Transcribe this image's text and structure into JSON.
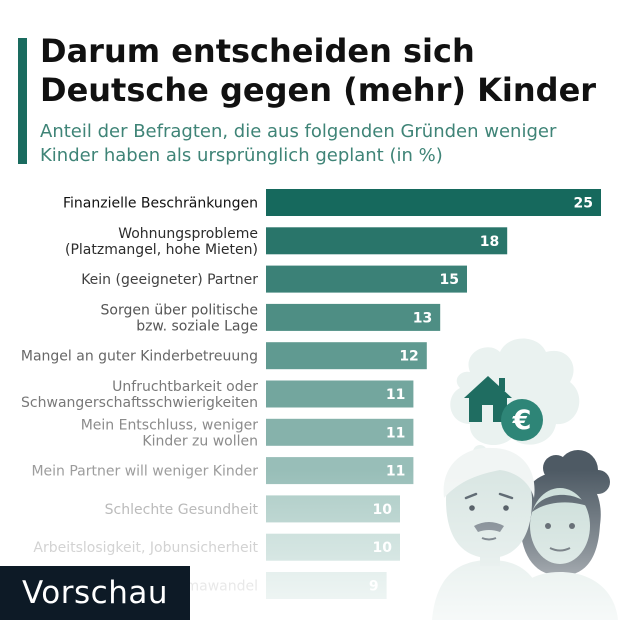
{
  "header": {
    "title_line1": "Darum entscheiden sich",
    "title_line2": "Deutsche gegen (mehr) Kinder",
    "subtitle_line1": "Anteil der Befragten, die aus folgenden Gründen weniger",
    "subtitle_line2": "Kinder haben als ursprünglich geplant (in %)"
  },
  "colors": {
    "accent": "#1a6b5f",
    "bar_start": "#16695d",
    "bar_end": "#d0e3df",
    "preview_bg": "#0d1a26"
  },
  "chart_data": {
    "type": "bar",
    "orientation": "horizontal",
    "title": "Darum entscheiden sich Deutsche gegen (mehr) Kinder",
    "subtitle": "Anteil der Befragten, die aus folgenden Gründen weniger Kinder haben als ursprünglich geplant (in %)",
    "xlabel": "",
    "ylabel": "",
    "xlim": [
      0,
      25
    ],
    "grid": false,
    "categories": [
      [
        "Finanzielle Beschränkungen"
      ],
      [
        "Wohnungsprobleme",
        "(Platzmangel, hohe Mieten)"
      ],
      [
        "Kein (geeigneter) Partner"
      ],
      [
        "Sorgen über politische",
        "bzw. soziale Lage"
      ],
      [
        "Mangel an guter Kinderbetreuung"
      ],
      [
        "Unfruchtbarkeit oder",
        "Schwangerschaftsschwierigkeiten"
      ],
      [
        "Mein Entschluss, weniger",
        "Kinder zu wollen"
      ],
      [
        "Mein Partner will weniger Kinder"
      ],
      [
        "Schlechte Gesundheit"
      ],
      [
        "Arbeitslosigkeit, Jobunsicherheit"
      ],
      [
        "Klimawandel"
      ]
    ],
    "values": [
      25,
      18,
      15,
      13,
      12,
      11,
      11,
      11,
      10,
      10,
      9
    ]
  },
  "preview_label": "Vorschau"
}
